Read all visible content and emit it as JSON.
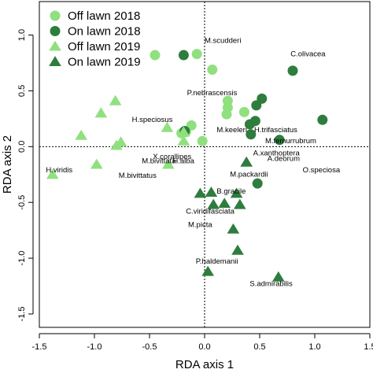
{
  "chart_data": {
    "type": "scatter",
    "xlabel": "RDA axis 1",
    "ylabel": "RDA axis 2",
    "xlim": [
      -1.5,
      1.5
    ],
    "ylim": [
      -1.62,
      1.3
    ],
    "xticks": [
      "-1.5",
      "-1.0",
      "-0.5",
      "0.0",
      "0.5",
      "1.0",
      "1.5"
    ],
    "yticks": [
      "-1.5",
      "-1.0",
      "-0.5",
      "0.0",
      "0.5",
      "1.0"
    ],
    "xtick_values": [
      -1.5,
      -1.0,
      -0.5,
      0.0,
      0.5,
      1.0,
      1.5
    ],
    "ytick_values": [
      -1.5,
      -1.0,
      -0.5,
      0.0,
      0.5,
      1.0
    ],
    "reference_lines": {
      "x": 0,
      "y": 0,
      "style": "dotted"
    },
    "legend_position": "top-left",
    "series": [
      {
        "name": "Off lawn 2018",
        "marker": "circle",
        "color": "#90E080",
        "points": [
          [
            -0.45,
            0.82
          ],
          [
            -0.07,
            0.83
          ],
          [
            0.07,
            0.69
          ],
          [
            -0.21,
            0.12
          ],
          [
            -0.02,
            0.05
          ],
          [
            -0.12,
            0.19
          ],
          [
            0.2,
            0.29
          ],
          [
            0.21,
            0.35
          ],
          [
            0.21,
            0.41
          ],
          [
            0.36,
            0.31
          ],
          [
            -0.17,
            0.13
          ]
        ]
      },
      {
        "name": "On lawn 2018",
        "marker": "circle",
        "color": "#2E7D3E",
        "points": [
          [
            -0.19,
            0.82
          ],
          [
            0.8,
            0.68
          ],
          [
            0.47,
            0.37
          ],
          [
            0.52,
            0.43
          ],
          [
            0.46,
            0.23
          ],
          [
            0.41,
            0.2
          ],
          [
            0.42,
            0.11
          ],
          [
            0.68,
            0.06
          ],
          [
            1.07,
            0.24
          ],
          [
            0.48,
            -0.33
          ],
          [
            -0.18,
            0.14
          ]
        ]
      },
      {
        "name": "Off lawn 2019",
        "marker": "triangle",
        "color": "#90E080",
        "points": [
          [
            -0.81,
            0.41
          ],
          [
            -0.94,
            0.3
          ],
          [
            -1.12,
            0.1
          ],
          [
            -1.38,
            -0.25
          ],
          [
            -0.98,
            -0.16
          ],
          [
            -0.8,
            0.01
          ],
          [
            -0.76,
            0.04
          ],
          [
            -0.34,
            0.17
          ],
          [
            -0.33,
            -0.16
          ],
          [
            -0.19,
            0.05
          ],
          [
            -0.19,
            0.13
          ]
        ]
      },
      {
        "name": "On lawn 2019",
        "marker": "triangle",
        "color": "#2E7D3E",
        "points": [
          [
            -0.04,
            -0.42
          ],
          [
            0.06,
            -0.41
          ],
          [
            0.29,
            -0.42
          ],
          [
            0.08,
            -0.52
          ],
          [
            0.18,
            -0.51
          ],
          [
            0.32,
            -0.52
          ],
          [
            0.26,
            -0.74
          ],
          [
            0.3,
            -0.93
          ],
          [
            0.03,
            -1.12
          ],
          [
            0.67,
            -1.17
          ],
          [
            0.38,
            -0.14
          ]
        ]
      }
    ],
    "species_labels": [
      {
        "text": "M.scudderi",
        "x": 0.0,
        "y": 0.93
      },
      {
        "text": "C.olivacea",
        "x": 0.78,
        "y": 0.81
      },
      {
        "text": "P.nebrascensis",
        "x": -0.16,
        "y": 0.46
      },
      {
        "text": "H.speciosus",
        "x": -0.66,
        "y": 0.22
      },
      {
        "text": "M.keeleri",
        "x": 0.11,
        "y": 0.13
      },
      {
        "text": "H.trifasciatus",
        "x": 0.45,
        "y": 0.13
      },
      {
        "text": "M.femurrubrum",
        "x": 0.55,
        "y": 0.03
      },
      {
        "text": "A.xanthoptera",
        "x": 0.44,
        "y": -0.08
      },
      {
        "text": "A.deorum",
        "x": 0.57,
        "y": -0.13
      },
      {
        "text": "O.speciosa",
        "x": 0.89,
        "y": -0.23
      },
      {
        "text": "H.viridis",
        "x": -1.44,
        "y": -0.23
      },
      {
        "text": "X.corallipes",
        "x": -0.47,
        "y": -0.11
      },
      {
        "text": "M.bivittata",
        "x": -0.57,
        "y": -0.15
      },
      {
        "text": "H.alba",
        "x": -0.29,
        "y": -0.15
      },
      {
        "text": "M.bivittatus",
        "x": -0.78,
        "y": -0.28
      },
      {
        "text": "M.packardii",
        "x": 0.23,
        "y": -0.27
      },
      {
        "text": "B.gracile",
        "x": 0.11,
        "y": -0.42
      },
      {
        "text": "C.viridifasciata",
        "x": -0.17,
        "y": -0.6
      },
      {
        "text": "M.picta",
        "x": -0.15,
        "y": -0.72
      },
      {
        "text": "P.haldemanii",
        "x": -0.08,
        "y": -1.05
      },
      {
        "text": "S.admirabilis",
        "x": 0.41,
        "y": -1.25
      }
    ]
  }
}
